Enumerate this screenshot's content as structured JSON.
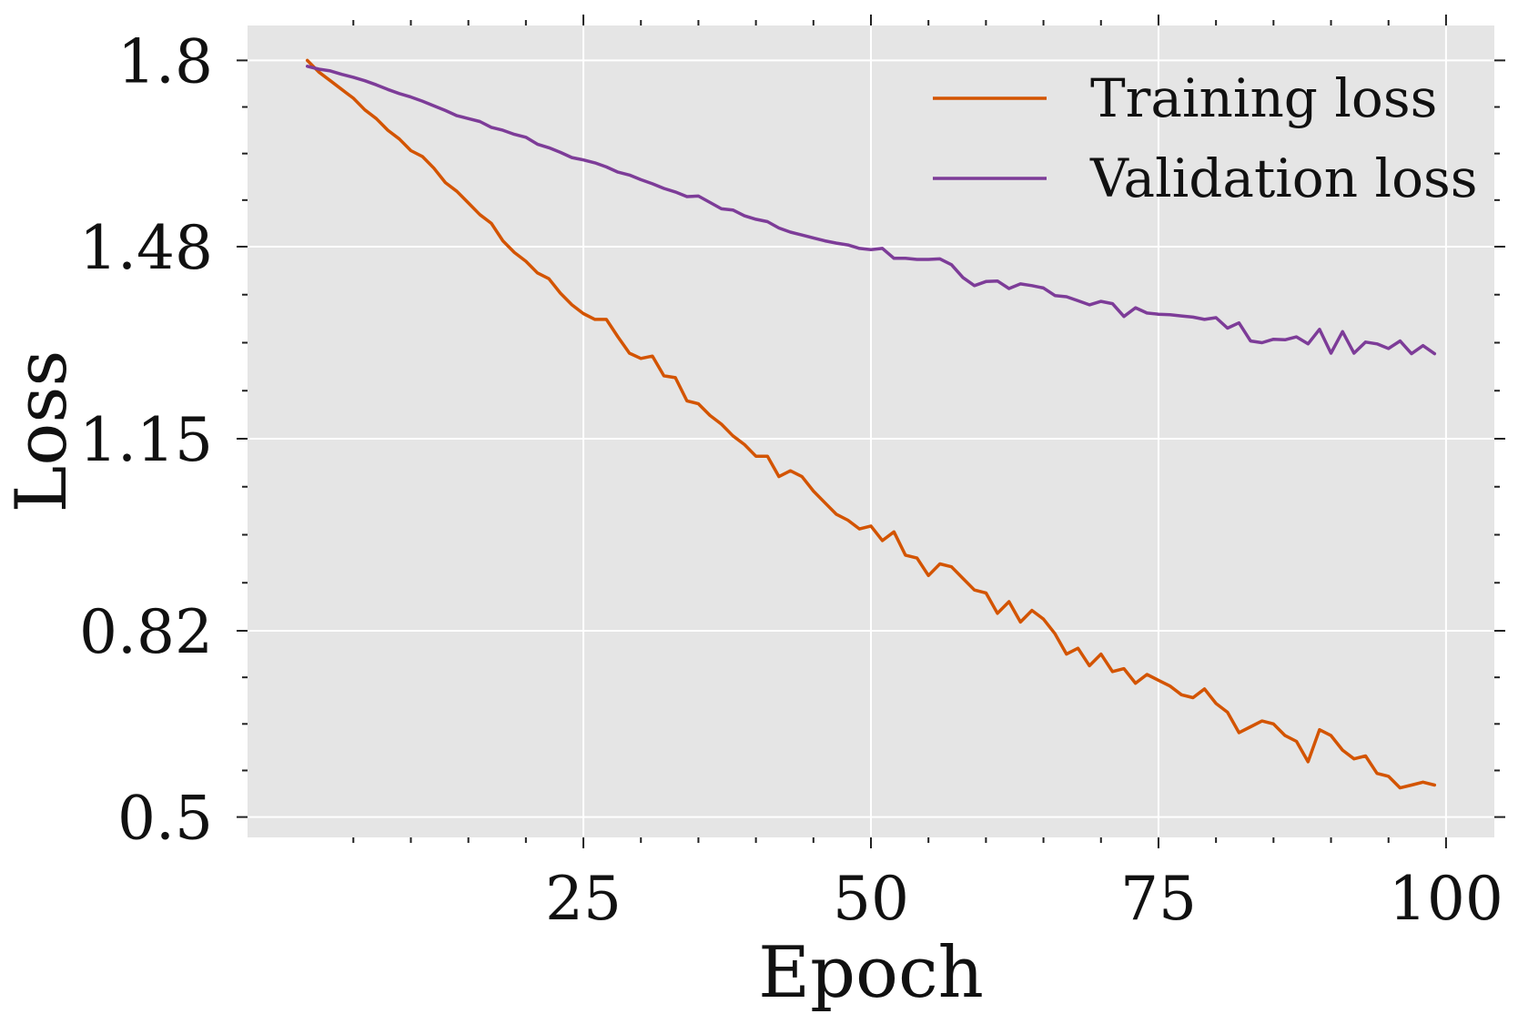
{
  "chart_data": {
    "type": "line",
    "title": "",
    "xlabel": "Epoch",
    "ylabel": "Loss",
    "xlim": [
      -4.2,
      104.2
    ],
    "ylim": [
      0.465,
      1.86
    ],
    "xticks": [
      25,
      50,
      75,
      100
    ],
    "xtick_labels": [
      "25",
      "50",
      "75",
      "100"
    ],
    "yticks": [
      0.5,
      0.82,
      1.15,
      1.48,
      1.8
    ],
    "ytick_labels": [
      "0.5",
      "0.82",
      "1.15",
      "1.48",
      "1.8"
    ],
    "grid": true,
    "legend_position": "top-right",
    "background": "#e5e5e5",
    "grid_color": "#ffffff",
    "series": [
      {
        "name": "Training loss",
        "color": "#d35400",
        "x": [
          1,
          2,
          3,
          4,
          5,
          6,
          7,
          8,
          9,
          10,
          11,
          12,
          13,
          14,
          15,
          16,
          17,
          18,
          19,
          20,
          21,
          22,
          23,
          24,
          25,
          26,
          27,
          28,
          29,
          30,
          31,
          32,
          33,
          34,
          35,
          36,
          37,
          38,
          39,
          40,
          41,
          42,
          43,
          44,
          45,
          46,
          47,
          48,
          49,
          50,
          51,
          52,
          53,
          54,
          55,
          56,
          57,
          58,
          59,
          60,
          61,
          62,
          63,
          64,
          65,
          66,
          67,
          68,
          69,
          70,
          71,
          72,
          73,
          74,
          75,
          76,
          77,
          78,
          79,
          80,
          81,
          82,
          83,
          84,
          85,
          86,
          87,
          88,
          89,
          90,
          91,
          92,
          93,
          94,
          95,
          96,
          97,
          98,
          99
        ],
        "values": [
          1.8,
          1.78,
          1.765,
          1.75,
          1.735,
          1.715,
          1.7,
          1.68,
          1.665,
          1.645,
          1.635,
          1.615,
          1.59,
          1.575,
          1.555,
          1.535,
          1.52,
          1.49,
          1.47,
          1.455,
          1.435,
          1.425,
          1.4,
          1.38,
          1.365,
          1.355,
          1.355,
          1.325,
          1.297,
          1.288,
          1.292,
          1.258,
          1.255,
          1.215,
          1.21,
          1.19,
          1.175,
          1.155,
          1.14,
          1.12,
          1.12,
          1.085,
          1.095,
          1.085,
          1.06,
          1.04,
          1.02,
          1.01,
          0.995,
          1.0,
          0.975,
          0.99,
          0.95,
          0.945,
          0.915,
          0.935,
          0.93,
          0.91,
          0.89,
          0.885,
          0.85,
          0.87,
          0.835,
          0.855,
          0.84,
          0.815,
          0.78,
          0.79,
          0.76,
          0.78,
          0.75,
          0.755,
          0.73,
          0.745,
          0.735,
          0.725,
          0.71,
          0.705,
          0.72,
          0.695,
          0.68,
          0.645,
          0.655,
          0.665,
          0.66,
          0.64,
          0.63,
          0.595,
          0.65,
          0.64,
          0.615,
          0.6,
          0.605,
          0.575,
          0.57,
          0.55,
          0.555,
          0.56,
          0.555
        ]
      },
      {
        "name": "Validation loss",
        "color": "#7d3c98",
        "x": [
          1,
          2,
          3,
          4,
          5,
          6,
          7,
          8,
          9,
          10,
          11,
          12,
          13,
          14,
          15,
          16,
          17,
          18,
          19,
          20,
          21,
          22,
          23,
          24,
          25,
          26,
          27,
          28,
          29,
          30,
          31,
          32,
          33,
          34,
          35,
          36,
          37,
          38,
          39,
          40,
          41,
          42,
          43,
          44,
          45,
          46,
          47,
          48,
          49,
          50,
          51,
          52,
          53,
          54,
          55,
          56,
          57,
          58,
          59,
          60,
          61,
          62,
          63,
          64,
          65,
          66,
          67,
          68,
          69,
          70,
          71,
          72,
          73,
          74,
          75,
          76,
          77,
          78,
          79,
          80,
          81,
          82,
          83,
          84,
          85,
          86,
          87,
          88,
          89,
          90,
          91,
          92,
          93,
          94,
          95,
          96,
          97,
          98,
          99
        ],
        "values": [
          1.79,
          1.785,
          1.782,
          1.776,
          1.771,
          1.765,
          1.758,
          1.75,
          1.743,
          1.737,
          1.73,
          1.722,
          1.714,
          1.705,
          1.7,
          1.695,
          1.685,
          1.68,
          1.673,
          1.668,
          1.656,
          1.65,
          1.642,
          1.633,
          1.629,
          1.624,
          1.617,
          1.608,
          1.603,
          1.595,
          1.588,
          1.58,
          1.574,
          1.566,
          1.567,
          1.556,
          1.545,
          1.543,
          1.533,
          1.527,
          1.523,
          1.512,
          1.505,
          1.5,
          1.495,
          1.49,
          1.486,
          1.483,
          1.477,
          1.475,
          1.477,
          1.46,
          1.46,
          1.458,
          1.458,
          1.459,
          1.449,
          1.427,
          1.413,
          1.42,
          1.421,
          1.408,
          1.416,
          1.413,
          1.409,
          1.396,
          1.394,
          1.387,
          1.38,
          1.386,
          1.382,
          1.36,
          1.375,
          1.366,
          1.364,
          1.363,
          1.361,
          1.359,
          1.355,
          1.358,
          1.34,
          1.349,
          1.318,
          1.315,
          1.321,
          1.32,
          1.325,
          1.313,
          1.338,
          1.297,
          1.334,
          1.297,
          1.316,
          1.313,
          1.305,
          1.318,
          1.296,
          1.31,
          1.296
        ]
      }
    ]
  }
}
